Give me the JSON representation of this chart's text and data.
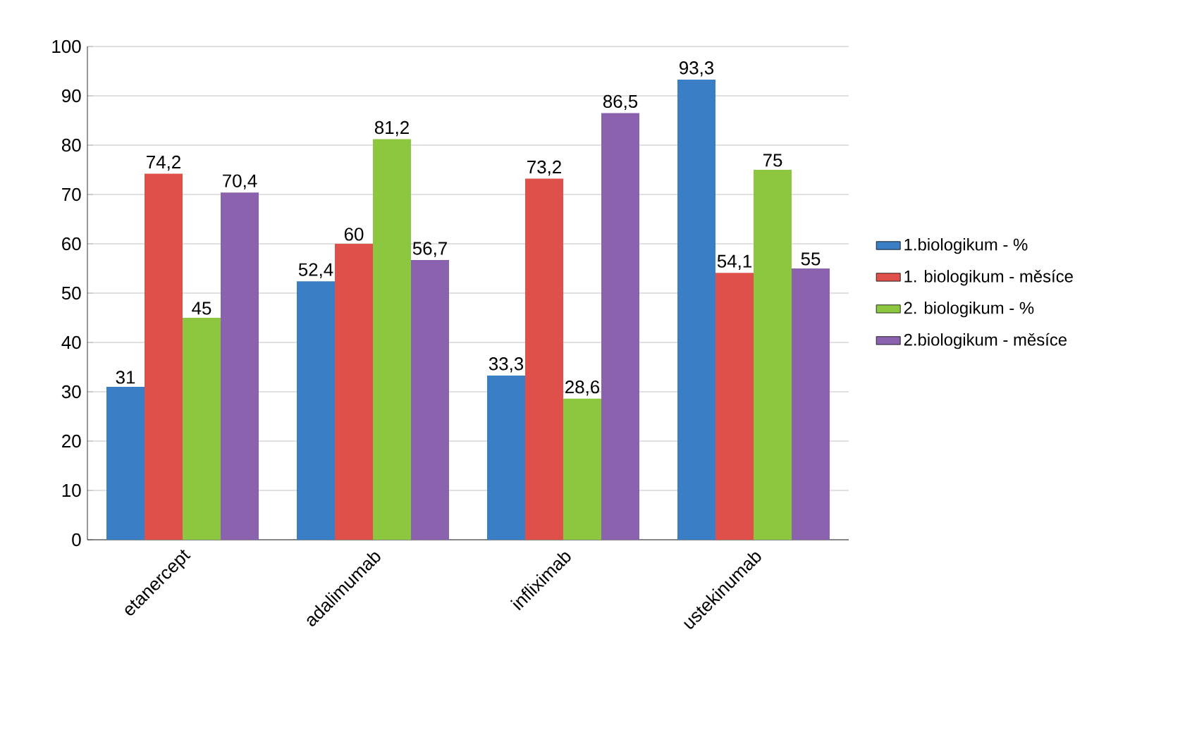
{
  "chart_data": {
    "type": "bar",
    "categories": [
      "etanercept",
      "adalimumab",
      "infliximab",
      "ustekinumab"
    ],
    "series": [
      {
        "name": "1.biologikum - %",
        "color": "#3a7fc6",
        "values": [
          31,
          52.4,
          33.3,
          93.3
        ],
        "value_labels": [
          "31",
          "52,4",
          "33,3",
          "93,3"
        ]
      },
      {
        "name": "1. biologikum - měsíce",
        "color": "#e0504a",
        "values": [
          74.2,
          60,
          73.2,
          54.1
        ],
        "value_labels": [
          "74,2",
          "60",
          "73,2",
          "54,1"
        ]
      },
      {
        "name": "2. biologikum - %",
        "color": "#8dc63f",
        "values": [
          45,
          81.2,
          28.6,
          75
        ],
        "value_labels": [
          "45",
          "81,2",
          "28,6",
          "75"
        ]
      },
      {
        "name": "2.biologikum - měsíce",
        "color": "#8a62ad",
        "values": [
          70.4,
          56.7,
          86.5,
          55
        ],
        "value_labels": [
          "70,4",
          "56,7",
          "86,5",
          "55"
        ]
      }
    ],
    "ylim": [
      0,
      100
    ],
    "yticks": [
      0,
      10,
      20,
      30,
      40,
      50,
      60,
      70,
      80,
      90,
      100
    ],
    "grid": "y",
    "legend": "right"
  }
}
